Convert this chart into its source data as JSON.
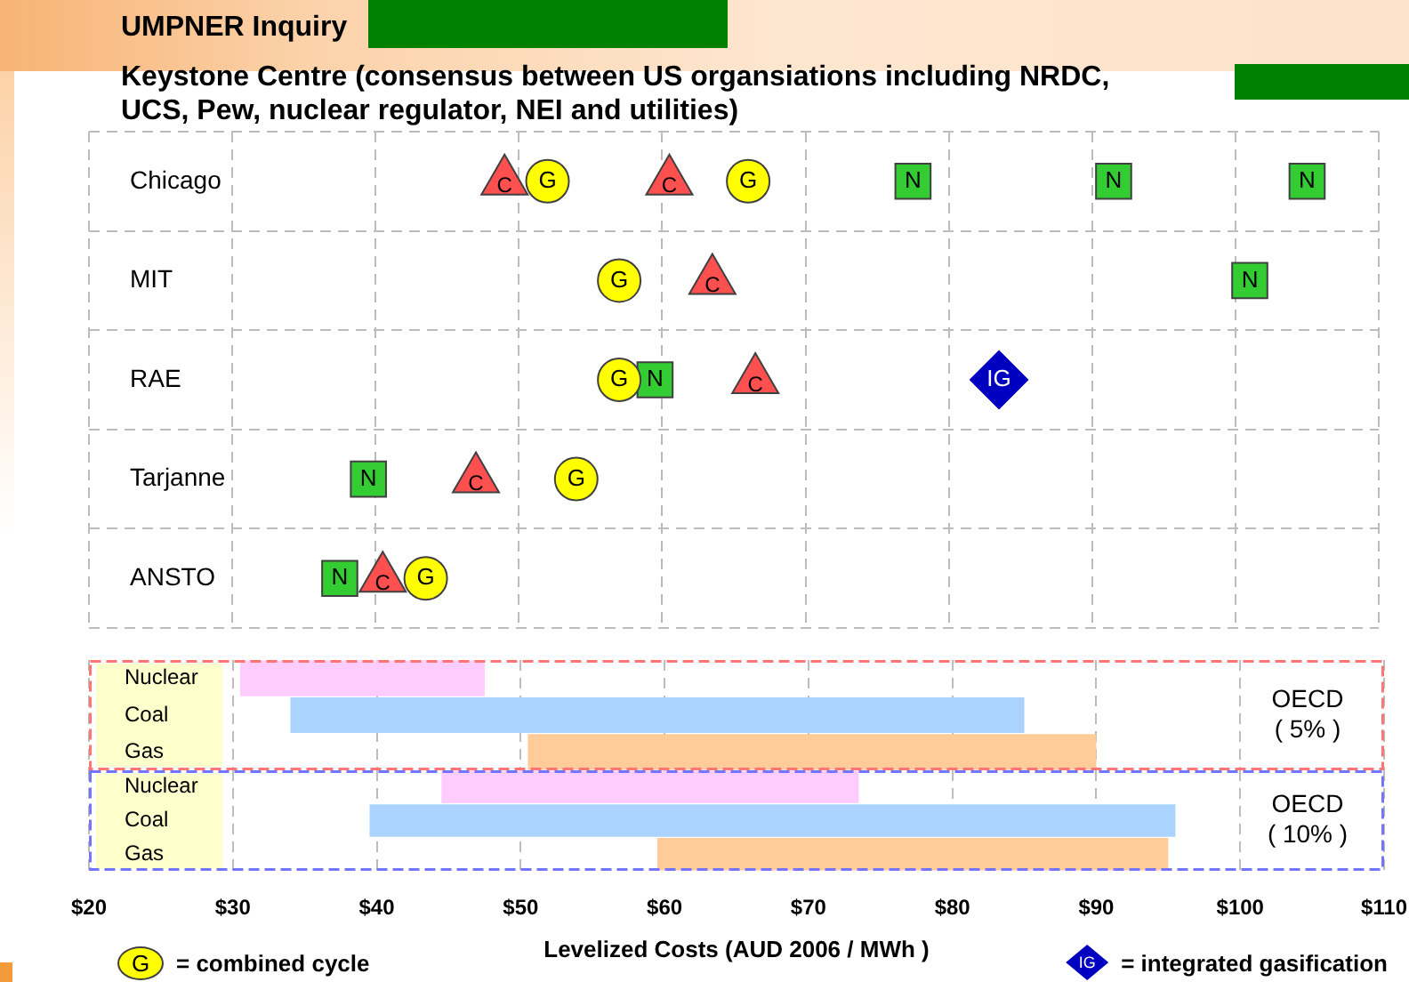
{
  "chart_data": [
    {
      "type": "scatter",
      "orientation": "horizontal",
      "title": "UMPNER Inquiry",
      "subtitle": "Keystone Centre (consensus between US organsiations including NRDC, UCS, Pew, nuclear regulator, NEI and utilities)",
      "categories": [
        "Chicago",
        "MIT",
        "RAE",
        "Tarjanne",
        "ANSTO"
      ],
      "series": [
        {
          "color": "#33cc33",
          "marker": "square",
          "values": [
            77.5,
            101,
            59.5,
            39.5,
            37.5
          ],
          "value_labels": [
            "N",
            "N",
            "N",
            "N",
            "N"
          ]
        },
        {
          "color": "#33cc33",
          "marker": "square",
          "values": [
            91.5,
            null,
            null,
            null,
            null
          ],
          "value_labels": [
            "N",
            null,
            null,
            null,
            null
          ]
        },
        {
          "color": "#33cc33",
          "marker": "square",
          "values": [
            105,
            null,
            null,
            null,
            null
          ],
          "value_labels": [
            "N",
            null,
            null,
            null,
            null
          ]
        },
        {
          "color": "#ff5050",
          "marker": "triangle",
          "values": [
            49,
            63.5,
            66.5,
            47,
            40.5
          ],
          "value_labels": [
            "C",
            "C",
            "C",
            "C",
            "C"
          ]
        },
        {
          "color": "#ff5050",
          "marker": "triangle",
          "values": [
            60.5,
            null,
            null,
            null,
            null
          ],
          "value_labels": [
            "C",
            null,
            null,
            null,
            null
          ]
        },
        {
          "name": "= combined cycle",
          "color": "#ffff00",
          "marker": "circle",
          "values": [
            52,
            57,
            57,
            54,
            43.5
          ],
          "value_labels": [
            "G",
            "G",
            "G",
            "G",
            "G"
          ]
        },
        {
          "color": "#ffff00",
          "marker": "circle",
          "values": [
            66,
            null,
            null,
            null,
            null
          ],
          "value_labels": [
            "G",
            null,
            null,
            null,
            null
          ]
        },
        {
          "name": "= integrated gasification",
          "color": "#0000c0",
          "marker": "diamond",
          "values": [
            null,
            null,
            83.5,
            null,
            null
          ],
          "value_labels": [
            null,
            null,
            "IG",
            null,
            null
          ]
        }
      ],
      "xlim": [
        20,
        110
      ],
      "xticks": [
        20,
        30,
        40,
        50,
        60,
        70,
        80,
        90,
        100,
        110
      ],
      "tick_labels": "y",
      "grid": true,
      "legend": "bottom"
    },
    {
      "type": "bar",
      "orientation": "horizontal",
      "categories": [
        "Nuclear",
        "Coal",
        "Gas"
      ],
      "base": [
        30.5,
        34,
        50.5
      ],
      "values": [
        17,
        51,
        39.5
      ],
      "colors": [
        "#ffccff",
        "#aad4ff",
        "#ffcc99"
      ],
      "xlim": [
        20,
        110
      ],
      "xticks": [
        20,
        30,
        40,
        50,
        60,
        70,
        80,
        90,
        100,
        110
      ],
      "tick_labels": "y",
      "grid": "x",
      "annotations": [
        "OECD ( 5% )"
      ]
    },
    {
      "type": "bar",
      "orientation": "horizontal",
      "categories": [
        "Nuclear",
        "Coal",
        "Gas"
      ],
      "base": [
        44.5,
        39.5,
        59.5
      ],
      "values": [
        29,
        56,
        35.5
      ],
      "colors": [
        "#ffccff",
        "#aad4ff",
        "#ffcc99"
      ],
      "xlim": [
        20,
        110
      ],
      "xticks": [
        {
          "value": 20,
          "label": "$20"
        },
        {
          "value": 30,
          "label": "$30"
        },
        {
          "value": 40,
          "label": "$40"
        },
        {
          "value": 50,
          "label": "$50"
        },
        {
          "value": 60,
          "label": "$60"
        },
        {
          "value": 70,
          "label": "$70"
        },
        {
          "value": 80,
          "label": "$80"
        },
        {
          "value": 90,
          "label": "$90"
        },
        {
          "value": 100,
          "label": "$100"
        },
        {
          "value": 110,
          "label": "$110"
        }
      ],
      "xlabel": "Levelized Costs (AUD 2006 / MWh )",
      "grid": "x",
      "annotations": [
        "OECD ( 10% )"
      ]
    }
  ]
}
